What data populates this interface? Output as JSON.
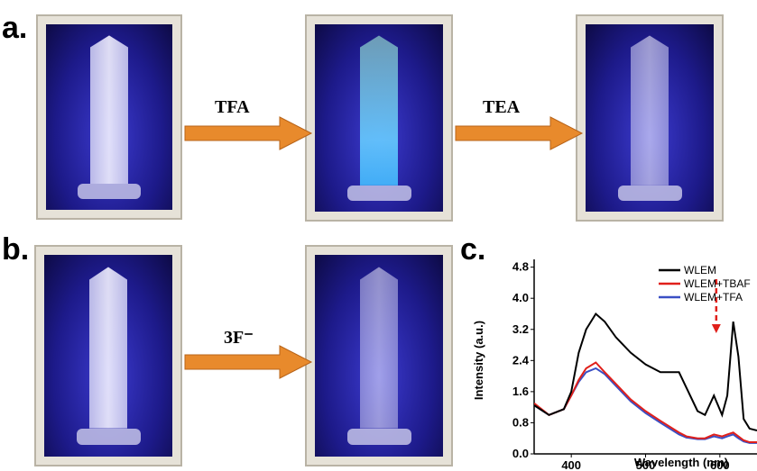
{
  "panels": {
    "a": "a.",
    "b": "b.",
    "c": "c."
  },
  "arrows": {
    "tfa": "TFA",
    "tea": "TEA",
    "fluoride": "3F⁻"
  },
  "chart_data": {
    "type": "line",
    "x_label": "Wavelength (nm)",
    "y_label": "Intensity (a.u.)",
    "x": [
      350,
      370,
      390,
      400,
      410,
      420,
      433,
      445,
      460,
      480,
      500,
      520,
      545,
      555,
      570,
      580,
      592,
      603,
      610,
      618,
      625,
      632,
      640,
      650
    ],
    "series": [
      {
        "name": "WLEM",
        "color": "#000000",
        "values": [
          1.25,
          1.0,
          1.15,
          1.6,
          2.6,
          3.2,
          3.6,
          3.4,
          3.0,
          2.6,
          2.3,
          2.1,
          2.1,
          1.7,
          1.1,
          1.0,
          1.5,
          1.0,
          1.5,
          3.4,
          2.5,
          0.9,
          0.65,
          0.6
        ]
      },
      {
        "name": "WLEM+TBAF",
        "color": "#e0201b",
        "values": [
          1.3,
          1.0,
          1.15,
          1.5,
          1.9,
          2.2,
          2.35,
          2.1,
          1.8,
          1.4,
          1.1,
          0.85,
          0.55,
          0.45,
          0.4,
          0.4,
          0.5,
          0.45,
          0.5,
          0.55,
          0.45,
          0.35,
          0.3,
          0.3
        ]
      },
      {
        "name": "WLEM+TFA",
        "color": "#3a4fc4",
        "values": [
          1.25,
          1.0,
          1.15,
          1.5,
          1.85,
          2.1,
          2.2,
          2.05,
          1.75,
          1.35,
          1.05,
          0.8,
          0.5,
          0.42,
          0.38,
          0.38,
          0.45,
          0.4,
          0.45,
          0.5,
          0.4,
          0.32,
          0.28,
          0.28
        ]
      }
    ],
    "xlim": [
      350,
      650
    ],
    "xticks": [
      400,
      500,
      600
    ],
    "ylim": [
      0,
      5
    ],
    "yticks": [
      {
        "value": 0,
        "label": "0.0"
      },
      0.8,
      1.6,
      2.4,
      3.2,
      {
        "value": 4,
        "label": "4.0"
      },
      4.8
    ],
    "legend": "top-right"
  }
}
